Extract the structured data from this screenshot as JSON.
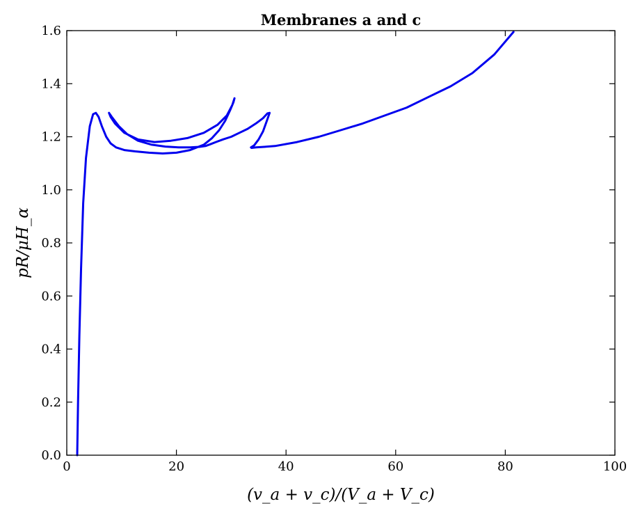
{
  "chart_data": {
    "type": "line",
    "title": "Membranes a and c",
    "xlabel": "(v_a + v_c)/(V_a + V_c)",
    "ylabel": "pR/μH_α",
    "xlim": [
      0,
      100
    ],
    "ylim": [
      0.0,
      1.6
    ],
    "xticks": [
      0,
      20,
      40,
      60,
      80,
      100
    ],
    "xtick_labels": [
      "0",
      "20",
      "40",
      "60",
      "80",
      "100"
    ],
    "yticks": [
      0.0,
      0.2,
      0.4,
      0.6,
      0.8,
      1.0,
      1.2,
      1.4,
      1.6
    ],
    "ytick_labels": [
      "0.0",
      "0.2",
      "0.4",
      "0.6",
      "0.8",
      "1.0",
      "1.2",
      "1.4",
      "1.6"
    ],
    "grid": false,
    "legend": null,
    "series": [
      {
        "color": "#0000ee",
        "x": [
          1.9,
          2.05,
          2.3,
          2.6,
          3.0,
          3.5,
          4.2,
          4.8,
          5.3,
          5.8,
          6.4,
          7.2,
          8.0,
          9.0,
          10.5,
          12.5,
          15.0,
          17.5,
          20.0,
          22.5,
          25.0,
          26.5,
          27.8,
          28.9,
          29.8,
          30.4,
          30.6,
          30.2,
          29.2,
          27.5,
          25.0,
          22.0,
          19.0,
          16.0,
          13.0,
          10.5,
          8.8,
          8.0,
          7.7,
          8.2,
          9.5,
          11.0,
          13.0,
          15.5,
          18.0,
          20.5,
          22.5,
          24.2,
          25.3,
          26.2,
          27.2,
          28.5,
          30.0,
          31.5,
          33.0,
          34.5,
          35.8,
          36.6,
          37.0,
          36.5,
          35.8,
          35.0,
          34.2,
          33.6,
          33.7,
          34.5,
          36.0,
          38.0,
          42.0,
          46.0,
          50.0,
          54.0,
          58.0,
          62.0,
          66.0,
          70.0,
          74.0,
          78.0,
          81.5
        ],
        "y": [
          0.0,
          0.2,
          0.45,
          0.7,
          0.95,
          1.12,
          1.24,
          1.285,
          1.29,
          1.275,
          1.24,
          1.2,
          1.175,
          1.16,
          1.15,
          1.145,
          1.14,
          1.137,
          1.14,
          1.15,
          1.17,
          1.195,
          1.225,
          1.26,
          1.3,
          1.33,
          1.345,
          1.32,
          1.28,
          1.245,
          1.215,
          1.195,
          1.185,
          1.18,
          1.19,
          1.215,
          1.25,
          1.275,
          1.29,
          1.275,
          1.24,
          1.21,
          1.185,
          1.17,
          1.163,
          1.16,
          1.16,
          1.162,
          1.165,
          1.172,
          1.18,
          1.19,
          1.2,
          1.215,
          1.23,
          1.25,
          1.27,
          1.288,
          1.29,
          1.26,
          1.22,
          1.19,
          1.168,
          1.16,
          1.158,
          1.16,
          1.162,
          1.165,
          1.18,
          1.2,
          1.225,
          1.25,
          1.28,
          1.31,
          1.35,
          1.39,
          1.44,
          1.51,
          1.595
        ]
      }
    ]
  }
}
